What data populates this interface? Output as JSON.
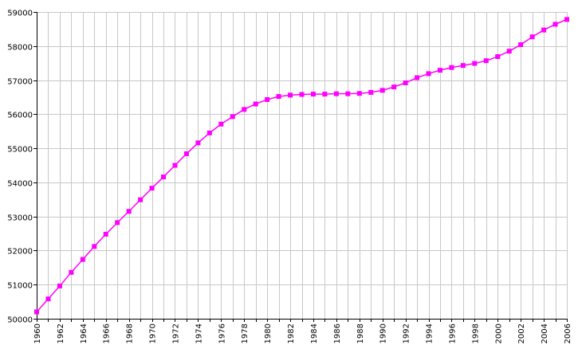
{
  "chart_data": {
    "type": "line",
    "x": [
      1960,
      1961,
      1962,
      1963,
      1964,
      1965,
      1966,
      1967,
      1968,
      1969,
      1970,
      1971,
      1972,
      1973,
      1974,
      1975,
      1976,
      1977,
      1978,
      1979,
      1980,
      1981,
      1982,
      1983,
      1984,
      1985,
      1986,
      1987,
      1988,
      1989,
      1990,
      1991,
      1992,
      1993,
      1994,
      1995,
      1996,
      1997,
      1998,
      1999,
      2000,
      2001,
      2002,
      2003,
      2004,
      2005,
      2006
    ],
    "series": [
      {
        "values": [
          50200,
          50580,
          50960,
          51360,
          51740,
          52120,
          52480,
          52820,
          53150,
          53490,
          53830,
          54160,
          54500,
          54840,
          55160,
          55450,
          55710,
          55930,
          56140,
          56300,
          56430,
          56520,
          56560,
          56580,
          56590,
          56590,
          56600,
          56600,
          56610,
          56640,
          56700,
          56800,
          56920,
          57070,
          57190,
          57290,
          57370,
          57430,
          57490,
          57570,
          57690,
          57850,
          58040,
          58270,
          58470,
          58640,
          58780
        ],
        "color": "#ff00ff",
        "marker": "square"
      }
    ],
    "xticks": [
      "1960",
      "1962",
      "1964",
      "1966",
      "1968",
      "1970",
      "1972",
      "1974",
      "1976",
      "1978",
      "1980",
      "1982",
      "1984",
      "1986",
      "1988",
      "1990",
      "1992",
      "1994",
      "1996",
      "1998",
      "2000",
      "2002",
      "2004",
      "2006"
    ],
    "yticks": [
      "50000",
      "51000",
      "52000",
      "53000",
      "54000",
      "55000",
      "56000",
      "57000",
      "58000",
      "59000"
    ],
    "xlim": [
      1960,
      2006
    ],
    "ylim": [
      50000,
      59000
    ],
    "title": "",
    "xlabel": "",
    "ylabel": "",
    "grid": true,
    "legend": "none"
  }
}
